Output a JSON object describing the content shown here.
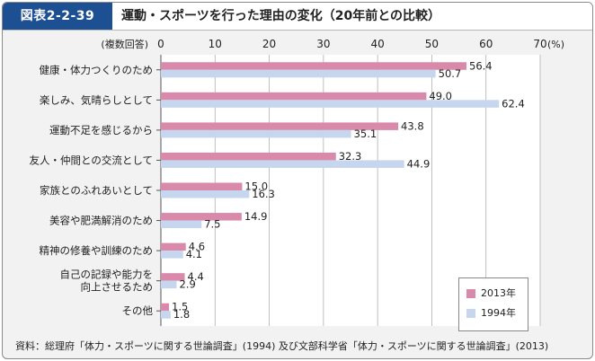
{
  "figure_label": "図表2-2-39",
  "title": "運動・スポーツを行った理由の変化（20年前との比較）",
  "source": "資料：総理府「体力・スポーツに関する世論調査」(1994)  及び文部科学省「体力・スポーツに関する世論調査」(2013)",
  "colors": {
    "s2013": "#d98aaa",
    "s1994": "#c6d6ee",
    "badge": "#1d4f93",
    "grid": "#b0b0b0"
  },
  "chart_data": {
    "type": "bar",
    "orientation": "horizontal",
    "axis_note": "(複数回答)",
    "unit": "(%)",
    "xlim": [
      0,
      70
    ],
    "ticks": [
      0,
      10,
      20,
      30,
      40,
      50,
      60,
      70
    ],
    "grid": true,
    "legend_position": "bottom-right",
    "categories": [
      [
        "健康・体力つくりのため"
      ],
      [
        "楽しみ、気晴らしとして"
      ],
      [
        "運動不足を感じるから"
      ],
      [
        "友人・仲間との交流として"
      ],
      [
        "家族とのふれあいとして"
      ],
      [
        "美容や肥満解消のため"
      ],
      [
        "精神の修養や訓練のため"
      ],
      [
        "自己の記録や能力を",
        "向上させるため"
      ],
      [
        "その他"
      ]
    ],
    "series": [
      {
        "name": "2013年",
        "color": "#d98aaa",
        "values": [
          56.4,
          49.0,
          43.8,
          32.3,
          15.0,
          14.9,
          4.6,
          4.4,
          1.5
        ]
      },
      {
        "name": "1994年",
        "color": "#c6d6ee",
        "values": [
          50.7,
          62.4,
          35.1,
          44.9,
          16.3,
          7.5,
          4.1,
          2.9,
          1.8
        ]
      }
    ]
  }
}
